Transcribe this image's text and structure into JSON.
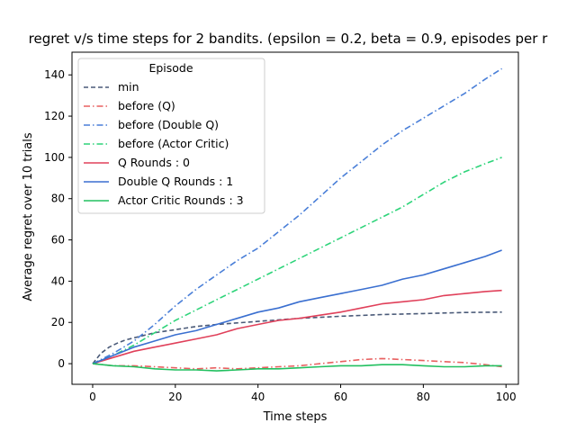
{
  "chart_data": {
    "type": "line",
    "title": "regret v/s time steps for 2 bandits. (epsilon = 0.2, beta = 0.9, episodes per r",
    "xlabel": "Time steps",
    "ylabel": "Average regret over 10 trials",
    "xlim": [
      -5,
      103
    ],
    "ylim": [
      -10,
      151
    ],
    "xticks": [
      0,
      20,
      40,
      60,
      80,
      100
    ],
    "yticks": [
      0,
      20,
      40,
      60,
      80,
      100,
      120,
      140
    ],
    "grid": false,
    "legend": {
      "title": "Episode",
      "placement": "top-left"
    },
    "series": [
      {
        "name": "min",
        "style": "dashed",
        "color": "#4a5a78",
        "x": [
          0,
          2,
          4,
          6,
          8,
          10,
          15,
          20,
          25,
          30,
          40,
          50,
          60,
          70,
          80,
          90,
          99
        ],
        "y": [
          0,
          5,
          8,
          10,
          11.5,
          12.5,
          15,
          16.5,
          18,
          19,
          20.5,
          22,
          23,
          23.8,
          24.3,
          24.8,
          25
        ]
      },
      {
        "name": "before (Q)",
        "style": "dashdot",
        "color": "#e86060",
        "x": [
          0,
          5,
          10,
          15,
          20,
          25,
          30,
          35,
          40,
          45,
          50,
          55,
          60,
          65,
          70,
          75,
          80,
          85,
          90,
          95,
          99
        ],
        "y": [
          0,
          -1,
          -1,
          -1.5,
          -2,
          -2.5,
          -2,
          -2.5,
          -2,
          -1.5,
          -1,
          0,
          1,
          2,
          2.5,
          2,
          1.5,
          1,
          0.5,
          -0.5,
          -1.5
        ]
      },
      {
        "name": "before (Double Q)",
        "style": "dashdot",
        "color": "#4a7fd8",
        "x": [
          0,
          5,
          10,
          15,
          20,
          25,
          30,
          35,
          40,
          45,
          50,
          55,
          60,
          65,
          70,
          75,
          80,
          85,
          90,
          95,
          99
        ],
        "y": [
          0,
          5,
          11,
          19,
          28,
          36,
          43,
          50,
          56,
          64,
          72,
          81,
          90,
          98,
          106,
          113,
          119,
          125,
          131,
          138,
          143
        ]
      },
      {
        "name": "before (Actor Critic)",
        "style": "dashdot",
        "color": "#2ed47a",
        "x": [
          0,
          5,
          10,
          15,
          20,
          25,
          30,
          35,
          40,
          45,
          50,
          55,
          60,
          65,
          70,
          75,
          80,
          85,
          90,
          95,
          99
        ],
        "y": [
          0,
          4,
          9,
          15,
          21,
          26,
          31,
          36,
          41,
          46,
          51,
          56,
          61,
          66,
          71,
          76,
          82,
          88,
          93,
          97,
          100
        ]
      },
      {
        "name": "Q Rounds : 0",
        "style": "solid",
        "color": "#e0405a",
        "x": [
          0,
          5,
          10,
          15,
          20,
          25,
          30,
          35,
          40,
          45,
          50,
          55,
          60,
          65,
          70,
          75,
          80,
          85,
          90,
          95,
          99
        ],
        "y": [
          0,
          3,
          6,
          8,
          10,
          12,
          14,
          17,
          19,
          21,
          22,
          23.5,
          25,
          27,
          29,
          30,
          31,
          33,
          34,
          35,
          35.5
        ]
      },
      {
        "name": "Double Q Rounds : 1",
        "style": "solid",
        "color": "#3a6fd0",
        "x": [
          0,
          5,
          10,
          15,
          20,
          25,
          30,
          35,
          40,
          45,
          50,
          55,
          60,
          65,
          70,
          75,
          80,
          85,
          90,
          95,
          99
        ],
        "y": [
          0,
          4,
          8,
          11,
          14,
          16,
          19,
          22,
          25,
          27,
          30,
          32,
          34,
          36,
          38,
          41,
          43,
          46,
          49,
          52,
          55
        ]
      },
      {
        "name": "Actor Critic Rounds : 3",
        "style": "solid",
        "color": "#22c060",
        "x": [
          0,
          5,
          10,
          15,
          20,
          25,
          30,
          35,
          40,
          45,
          50,
          55,
          60,
          65,
          70,
          75,
          80,
          85,
          90,
          95,
          99
        ],
        "y": [
          0,
          -1,
          -1.5,
          -2.5,
          -3,
          -3,
          -3.5,
          -3,
          -2.5,
          -2.5,
          -2,
          -1.5,
          -1,
          -1,
          -0.5,
          -0.5,
          -1,
          -1.5,
          -1.5,
          -1,
          -1
        ]
      }
    ]
  }
}
